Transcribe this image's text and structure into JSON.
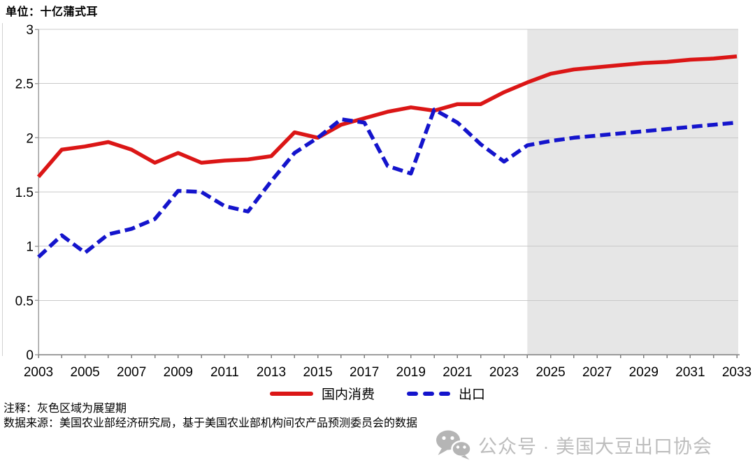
{
  "page": {
    "notes": [
      "注释：灰色区域为展望期",
      "数据来源：美国农业部经济研究局，基于美国农业部机构间农产品预测委员会的数据"
    ],
    "watermark_text": "公众号 · 美国大豆出口协会",
    "watermark_color": "#bdbdbd"
  },
  "chart_data": {
    "type": "line",
    "title": "单位：十亿蒲式耳",
    "xlabel": "",
    "ylabel": "十亿蒲式耳",
    "xlim": [
      2003,
      2033
    ],
    "ylim": [
      0,
      3
    ],
    "grid": true,
    "legend_position": "bottom-center",
    "xticks": [
      2003,
      2005,
      2007,
      2009,
      2011,
      2013,
      2015,
      2017,
      2019,
      2021,
      2023,
      2025,
      2027,
      2029,
      2031,
      2033
    ],
    "yticks": [
      0,
      0.5,
      1,
      1.5,
      2,
      2.5,
      3
    ],
    "ytick_labels": [
      "0",
      "0.5",
      "1",
      "1.5",
      "2",
      "2.5",
      "3"
    ],
    "x": [
      2003,
      2004,
      2005,
      2006,
      2007,
      2008,
      2009,
      2010,
      2011,
      2012,
      2013,
      2014,
      2015,
      2016,
      2017,
      2018,
      2019,
      2020,
      2021,
      2022,
      2023,
      2024,
      2025,
      2026,
      2027,
      2028,
      2029,
      2030,
      2031,
      2032,
      2033
    ],
    "series": [
      {
        "name": "国内消费",
        "style": "solid",
        "color": "#db1616",
        "values": [
          1.64,
          1.89,
          1.92,
          1.96,
          1.89,
          1.77,
          1.86,
          1.77,
          1.79,
          1.8,
          1.83,
          2.05,
          2.0,
          2.12,
          2.18,
          2.24,
          2.28,
          2.25,
          2.31,
          2.31,
          2.42,
          2.51,
          2.59,
          2.63,
          2.65,
          2.67,
          2.69,
          2.7,
          2.72,
          2.73,
          2.75
        ]
      },
      {
        "name": "出口",
        "style": "dashed",
        "color": "#1414cc",
        "values": [
          0.9,
          1.1,
          0.94,
          1.11,
          1.16,
          1.25,
          1.51,
          1.5,
          1.37,
          1.32,
          1.6,
          1.86,
          2.0,
          2.17,
          2.14,
          1.74,
          1.67,
          2.26,
          2.14,
          1.94,
          1.78,
          1.93,
          1.97,
          2.0,
          2.02,
          2.04,
          2.06,
          2.08,
          2.1,
          2.12,
          2.14
        ]
      }
    ],
    "forecast_region": {
      "start": 2024,
      "end": 2033,
      "color": "#e6e6e6",
      "meaning": "展望期"
    },
    "colors": {
      "grid": "#c9c9c9",
      "axis": "#7f7f7f",
      "y_axis": "#a0a0a0",
      "tick_text": "#000000"
    }
  }
}
